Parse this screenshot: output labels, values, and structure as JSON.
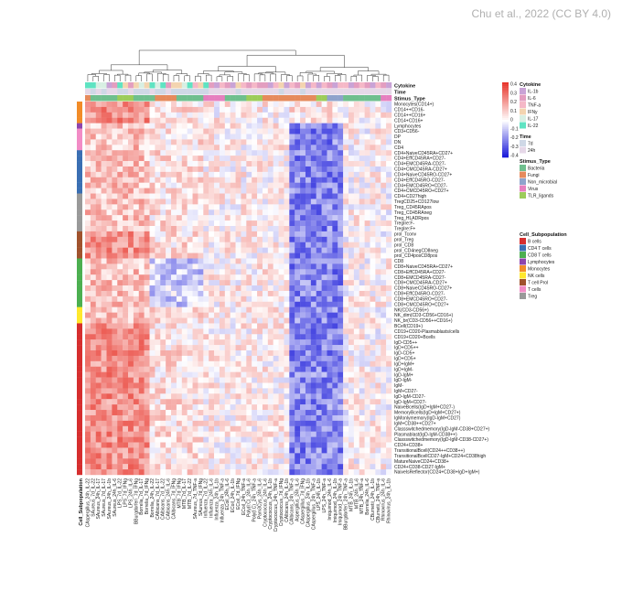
{
  "credit": "Chu et al., 2022 (CC BY 4.0)",
  "chart_data": {
    "type": "heatmap",
    "color_scale": {
      "ticks": [
        0.4,
        0.3,
        0.2,
        0.1,
        0,
        -0.1,
        -0.2,
        -0.3,
        -0.4
      ],
      "colors": {
        "high": "#e8372d",
        "mid": "#ffffff",
        "low": "#1010d8"
      }
    },
    "annotation_tracks": [
      "Cytokine",
      "Time",
      "Stimus_Type"
    ],
    "row_track_title": "Cell_Subpopulation",
    "rows": [
      {
        "label": "Monocytes(CD14+)",
        "group": "Monocytes"
      },
      {
        "label": "CD14++CD16-",
        "group": "Monocytes"
      },
      {
        "label": "CD14++CD16+",
        "group": "Monocytes"
      },
      {
        "label": "CD14+CD16+",
        "group": "Monocytes"
      },
      {
        "label": "Lymphocytes",
        "group": "Lymphocytes"
      },
      {
        "label": "CD3+CD56-",
        "group": "T cells"
      },
      {
        "label": "DP",
        "group": "T cells"
      },
      {
        "label": "DN",
        "group": "T cells"
      },
      {
        "label": "CD4",
        "group": "T cells"
      },
      {
        "label": "CD4+NaiveCD45RA+CD27+",
        "group": "CD4 T cells"
      },
      {
        "label": "CD4+EffCD45RA+CD27-",
        "group": "CD4 T cells"
      },
      {
        "label": "CD4+EMCD45RA-CD27-",
        "group": "CD4 T cells"
      },
      {
        "label": "CD4+CMCD45RA-CD27+",
        "group": "CD4 T cells"
      },
      {
        "label": "CD4+NaiveCD45RO-CD27+",
        "group": "CD4 T cells"
      },
      {
        "label": "CD4+EffCD45RO-CD27-",
        "group": "CD4 T cells"
      },
      {
        "label": "CD4+EMCD45RO+CD27-",
        "group": "CD4 T cells"
      },
      {
        "label": "CD4+CMCD45RO+CD27+",
        "group": "CD4 T cells"
      },
      {
        "label": "CD4+CD27high",
        "group": "Treg"
      },
      {
        "label": "TregCD25+CD127low",
        "group": "Treg"
      },
      {
        "label": "Treg_CD45RApos",
        "group": "Treg"
      },
      {
        "label": "Treg_CD45RAneg",
        "group": "Treg"
      },
      {
        "label": "Treg_HLADRpos",
        "group": "Treg"
      },
      {
        "label": "TregIre:F-",
        "group": "Treg"
      },
      {
        "label": "TregIre:F+",
        "group": "Treg"
      },
      {
        "label": "prol_Tconv",
        "group": "T cell Prol"
      },
      {
        "label": "prol_Treg",
        "group": "T cell Prol"
      },
      {
        "label": "prol_CD8",
        "group": "T cell Prol"
      },
      {
        "label": "prol_CD4negCD8neg",
        "group": "T cell Prol"
      },
      {
        "label": "prol_CD4posCD8pos",
        "group": "T cell Prol"
      },
      {
        "label": "CD8",
        "group": "CD8 T cells"
      },
      {
        "label": "CD8+NaiveCD45RA+CD27+",
        "group": "CD8 T cells"
      },
      {
        "label": "CD8+EffCD45RA+CD27-",
        "group": "CD8 T cells"
      },
      {
        "label": "CD8+EMCD45RA-CD27-",
        "group": "CD8 T cells"
      },
      {
        "label": "CD8+CMCD45RA-CD27+",
        "group": "CD8 T cells"
      },
      {
        "label": "CD8+NaiveCD45RO-CD27+",
        "group": "CD8 T cells"
      },
      {
        "label": "CD8+EffCD45RO-CD27-",
        "group": "CD8 T cells"
      },
      {
        "label": "CD8+EMCD45RO+CD27-",
        "group": "CD8 T cells"
      },
      {
        "label": "CD8+CMCD45RO+CD27+",
        "group": "CD8 T cells"
      },
      {
        "label": "NK(CD3-CD56+)",
        "group": "NK cells"
      },
      {
        "label": "NK_dim(CD3-CD56+CD16+)",
        "group": "NK cells"
      },
      {
        "label": "NK_br(CD3-CD56++CD16+)",
        "group": "NK cells"
      },
      {
        "label": "BCell(CD19+)",
        "group": "B cells"
      },
      {
        "label": "CD19+CD20-Plasmablasts/cells",
        "group": "B cells"
      },
      {
        "label": "CD19+CD20+Bcells",
        "group": "B cells"
      },
      {
        "label": "IgD-CD5++",
        "group": "B cells"
      },
      {
        "label": "IgD+CD5++",
        "group": "B cells"
      },
      {
        "label": "IgD-CD5+",
        "group": "B cells"
      },
      {
        "label": "IgD+CD5+",
        "group": "B cells"
      },
      {
        "label": "IgD+IgM+",
        "group": "B cells"
      },
      {
        "label": "IgD+IgM-",
        "group": "B cells"
      },
      {
        "label": "IgD-IgM+",
        "group": "B cells"
      },
      {
        "label": "IgD-IgM-",
        "group": "B cells"
      },
      {
        "label": "IgM-",
        "group": "B cells"
      },
      {
        "label": "IgM+CD27-",
        "group": "B cells"
      },
      {
        "label": "IgD-IgM-CD27-",
        "group": "B cells"
      },
      {
        "label": "IgD-IgM+CD27-",
        "group": "B cells"
      },
      {
        "label": "NaiveBcells(IgD+IgM+CD27-)",
        "group": "B cells"
      },
      {
        "label": "MemoryBcells(IgD+IgM+CD27+)",
        "group": "B cells"
      },
      {
        "label": "IgMonlymemory(IgD-IgM+CD27)",
        "group": "B cells"
      },
      {
        "label": "IgM+CD38++CD27+",
        "group": "B cells"
      },
      {
        "label": "Classswitchedmemory(IgD-IgM-CD38+CD27+)",
        "group": "B cells"
      },
      {
        "label": "Plasmablast(IgD-IgM-CD38++)",
        "group": "B cells"
      },
      {
        "label": "Classswitchedmemory(IgD-IgM-CD38-CD27+)",
        "group": "B cells"
      },
      {
        "label": "CD24+CD38+",
        "group": "B cells"
      },
      {
        "label": "TransitionalBcell(CD24++CD38++)",
        "group": "B cells"
      },
      {
        "label": "TransitionalBcellCD27-IgM+CD24+CD38high",
        "group": "B cells"
      },
      {
        "label": "MatureNaiveCD24+CD38+",
        "group": "B cells"
      },
      {
        "label": "CD24+CD38-CD27-IgM+",
        "group": "B cells"
      },
      {
        "label": "NaiveIsReflector(CD24+CD38+IgD+IgM+)",
        "group": "B cells"
      }
    ],
    "columns": [
      "CAspergillus_24h_IL-22",
      "SAureus_7d_IL-22",
      "SAureus_24h_IL-17",
      "SAureus_7d_IL-17",
      "SAureus_24h_IL-1b",
      "SAureus_24h_IL-6",
      "LPS_7d_IL-22",
      "LPS_7d_IFNg",
      "LPS_24h_IL-6",
      "BBurgdorferi_7d_IFNg",
      "Borrelia_7d_IL-17",
      "Borrelia_7d_IFNg",
      "Borrelia_24h_IL-22",
      "CAlbicans_7d_IL-17",
      "CAlbicans_7d_IL-22",
      "CAlbicans_24h_IL-6",
      "CAlbicans_7d_IFNg",
      "MTB_7d_IFNg",
      "MTB_7d_IL-17",
      "MTB_7d_IL-22",
      "SAureus_7d_TNF-a",
      "SAureus_7d_IFNg",
      "Influenza_7d_IL-22",
      "Influenza_24h_IL-6",
      "Influenza_24h_IL-1b",
      "Influenza_24h_TNF-a",
      "ECoil_24h_IL-6",
      "ECoil_24h_IL-1b",
      "ECoil_7d_IFNg",
      "ECoil_24h_TNF-a",
      "Poly(I:C)_24h_IL-6",
      "Poly(I:C)_24h_TNF-a",
      "Pam3Cys_24h_IL-6",
      "Cryptococcus_24h_IL-6",
      "Cryptococcus_24h_IL-1b",
      "Cryptococcus_24h_TNF-a",
      "Cryptococcus_7d_IFNg",
      "CAlbicans_24h_IL-1b",
      "CAlbicans_24h_TNF-a",
      "Aspergillus_24h_IL-6",
      "CAspergillus_7d_IFNg",
      "CAspergillus_24h_IL-1b",
      "CAspergillus_24h_TNF-a",
      "LPS_24h_IL-1b",
      "LPS_24h_TNF-a",
      "Imiquimod_24h_IL-6",
      "Imiquimod_24h_IL-1b",
      "Imiquimod_24h_TNF-a",
      "BBurgdorferi_24h_TNF-a",
      "MTB_24h_IL-1b",
      "MTB_24h_IL-6",
      "MTB_24h_TNF-a",
      "Borrelia_24h_IL-6",
      "CBurnetii_24h_IL-1b",
      "CBurnetii_24h_TNF-a",
      "Rhinovirus_24h_IL-6",
      "Rhinovirus_24h_IL-1b"
    ],
    "legend": {
      "Cytokine": [
        {
          "label": "IL-1b",
          "color": "#c9a3d6"
        },
        {
          "label": "IL-6",
          "color": "#e39ec0"
        },
        {
          "label": "TNF-a",
          "color": "#f5b8c7"
        },
        {
          "label": "IFNy",
          "color": "#f3d4b0"
        },
        {
          "label": "IL-17",
          "color": "#d8efe3"
        },
        {
          "label": "IL-22",
          "color": "#5fe3c2"
        }
      ],
      "Time": [
        {
          "label": "7d",
          "color": "#cfd8e6"
        },
        {
          "label": "24h",
          "color": "#e6d8e8"
        }
      ],
      "Stimus_Type": [
        {
          "label": "Bacteria",
          "color": "#6fbf8e"
        },
        {
          "label": "Fungi",
          "color": "#e68a5c"
        },
        {
          "label": "Non_microbial",
          "color": "#8fa3cc"
        },
        {
          "label": "Virus",
          "color": "#e67fbf"
        },
        {
          "label": "TLR_ligands",
          "color": "#9ccc5a"
        }
      ],
      "Cell_Subpopulation": [
        {
          "label": "B cells",
          "color": "#d62e2e"
        },
        {
          "label": "CD4 T cells",
          "color": "#3a6fb3"
        },
        {
          "label": "CD8 T cells",
          "color": "#4caf50"
        },
        {
          "label": "Lymphocytes",
          "color": "#8e44ad"
        },
        {
          "label": "Monocytes",
          "color": "#f28c28"
        },
        {
          "label": "NK cells",
          "color": "#ffe82c"
        },
        {
          "label": "T cell Prol",
          "color": "#a0522d"
        },
        {
          "label": "T cells",
          "color": "#f28cc6"
        },
        {
          "label": "Treg",
          "color": "#999999"
        }
      ]
    },
    "cytokine_track": [
      "IL-22",
      "IL-22",
      "IL-17",
      "IL-17",
      "IL-1b",
      "IL-6",
      "IL-22",
      "IFNy",
      "IL-6",
      "IFNy",
      "IL-17",
      "IFNy",
      "IL-22",
      "IL-17",
      "IL-22",
      "IL-6",
      "IFNy",
      "IFNy",
      "IL-17",
      "IL-22",
      "TNF-a",
      "IFNy",
      "IL-22",
      "IL-6",
      "IL-1b",
      "TNF-a",
      "IL-6",
      "IL-1b",
      "IFNy",
      "TNF-a",
      "IL-6",
      "TNF-a",
      "IL-6",
      "IL-6",
      "IL-1b",
      "TNF-a",
      "IFNy",
      "IL-1b",
      "TNF-a",
      "IL-6",
      "IFNy",
      "IL-1b",
      "TNF-a",
      "IL-1b",
      "TNF-a",
      "IL-6",
      "IL-1b",
      "TNF-a",
      "TNF-a",
      "IL-1b",
      "IL-6",
      "TNF-a",
      "IL-6",
      "IL-1b",
      "TNF-a",
      "IL-6",
      "IL-1b"
    ],
    "time_track": [
      "24h",
      "7d",
      "24h",
      "7d",
      "24h",
      "24h",
      "7d",
      "7d",
      "24h",
      "7d",
      "7d",
      "7d",
      "24h",
      "7d",
      "7d",
      "24h",
      "7d",
      "7d",
      "7d",
      "7d",
      "7d",
      "7d",
      "7d",
      "24h",
      "24h",
      "24h",
      "24h",
      "24h",
      "7d",
      "24h",
      "24h",
      "24h",
      "24h",
      "24h",
      "24h",
      "24h",
      "7d",
      "24h",
      "24h",
      "24h",
      "7d",
      "24h",
      "24h",
      "24h",
      "24h",
      "24h",
      "24h",
      "24h",
      "24h",
      "24h",
      "24h",
      "24h",
      "24h",
      "24h",
      "24h",
      "24h",
      "24h"
    ],
    "stim_track": [
      "Fungi",
      "Bacteria",
      "Bacteria",
      "Bacteria",
      "Bacteria",
      "Bacteria",
      "TLR_ligands",
      "TLR_ligands",
      "TLR_ligands",
      "Bacteria",
      "Bacteria",
      "Bacteria",
      "Bacteria",
      "Fungi",
      "Fungi",
      "Fungi",
      "Fungi",
      "Bacteria",
      "Bacteria",
      "Bacteria",
      "Bacteria",
      "Bacteria",
      "Virus",
      "Virus",
      "Virus",
      "Virus",
      "Bacteria",
      "Bacteria",
      "Bacteria",
      "Bacteria",
      "TLR_ligands",
      "TLR_ligands",
      "TLR_ligands",
      "Fungi",
      "Fungi",
      "Fungi",
      "Fungi",
      "Fungi",
      "Fungi",
      "Fungi",
      "Fungi",
      "Fungi",
      "Fungi",
      "TLR_ligands",
      "TLR_ligands",
      "Non_microbial",
      "Non_microbial",
      "Non_microbial",
      "Bacteria",
      "Bacteria",
      "Bacteria",
      "Bacteria",
      "Bacteria",
      "Bacteria",
      "Bacteria",
      "Virus",
      "Virus"
    ]
  }
}
